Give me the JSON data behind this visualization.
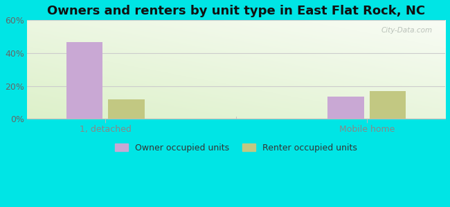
{
  "title": "Owners and renters by unit type in East Flat Rock, NC",
  "categories": [
    "1, detached",
    "Mobile home"
  ],
  "owner_values": [
    46.5,
    13.5
  ],
  "renter_values": [
    12.0,
    17.0
  ],
  "owner_color": "#c9a8d4",
  "renter_color": "#c2c882",
  "owner_label": "Owner occupied units",
  "renter_label": "Renter occupied units",
  "ylim": [
    0,
    60
  ],
  "yticks": [
    0,
    20,
    40,
    60
  ],
  "ytick_labels": [
    "0%",
    "20%",
    "40%",
    "60%"
  ],
  "background_outer": "#00e5e5",
  "title_fontsize": 13,
  "bar_width": 0.28,
  "watermark": "City-Data.com"
}
